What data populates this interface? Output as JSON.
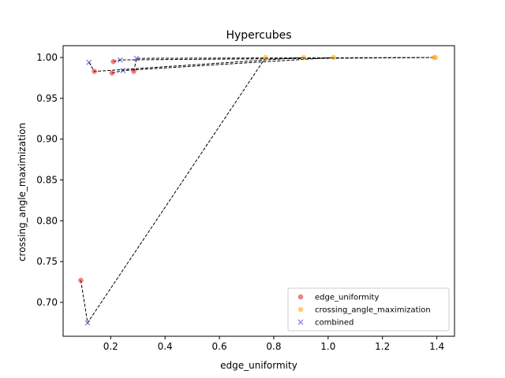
{
  "chart_data": {
    "type": "scatter",
    "title": "Hypercubes",
    "xlabel": "edge_uniformity",
    "ylabel": "crossing_angle_maximization",
    "xlim": [
      0.025,
      1.465
    ],
    "ylim": [
      0.6585,
      1.0145
    ],
    "x_ticks": [
      0.2,
      0.4,
      0.6,
      0.8,
      1.0,
      1.2,
      1.4
    ],
    "y_ticks": [
      0.7,
      0.75,
      0.8,
      0.85,
      0.9,
      0.95,
      1.0
    ],
    "legend_position": "lower-right",
    "series": [
      {
        "name": "edge_uniformity",
        "marker": "circle",
        "color": "#e41a1c",
        "points": [
          [
            0.09,
            0.727
          ],
          [
            0.14,
            0.983
          ],
          [
            0.205,
            0.981
          ],
          [
            0.21,
            0.995
          ],
          [
            0.285,
            0.983
          ]
        ]
      },
      {
        "name": "crossing_angle_maximization",
        "marker": "circle",
        "color": "#ffa500",
        "points": [
          [
            0.77,
            1.0
          ],
          [
            0.91,
            1.0
          ],
          [
            1.02,
            1.0
          ],
          [
            1.39,
            1.0
          ],
          [
            1.395,
            1.0
          ]
        ]
      },
      {
        "name": "combined",
        "marker": "x",
        "color": "#3333cc",
        "points": [
          [
            0.115,
            0.675
          ],
          [
            0.12,
            0.994
          ],
          [
            0.235,
            0.997
          ],
          [
            0.245,
            0.984
          ],
          [
            0.295,
            0.999
          ]
        ]
      }
    ],
    "connections": [
      [
        [
          0.09,
          0.727
        ],
        [
          0.115,
          0.675
        ],
        [
          0.77,
          1.0
        ]
      ],
      [
        [
          0.12,
          0.994
        ],
        [
          0.14,
          0.983
        ],
        [
          0.91,
          1.0
        ]
      ],
      [
        [
          0.205,
          0.981
        ],
        [
          0.245,
          0.984
        ],
        [
          1.02,
          1.0
        ]
      ],
      [
        [
          0.21,
          0.995
        ],
        [
          0.235,
          0.997
        ],
        [
          1.39,
          1.0
        ]
      ],
      [
        [
          0.285,
          0.983
        ],
        [
          0.295,
          0.999
        ],
        [
          1.395,
          1.0
        ]
      ]
    ]
  }
}
